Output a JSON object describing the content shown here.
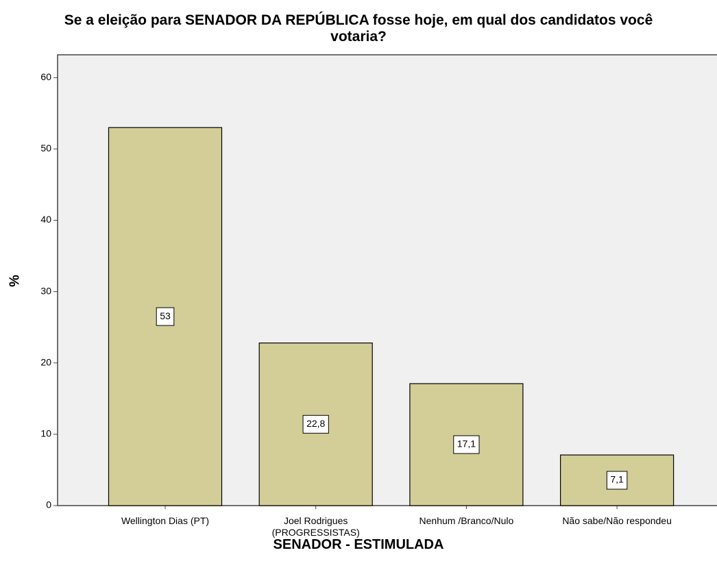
{
  "chart_data": {
    "type": "bar",
    "title": "Se a eleição para SENADOR  DA REPÚBLICA  fosse hoje, em qual dos candidatos você votaria?",
    "x_label": "SENADOR - ESTIMULADA",
    "y_label": "%",
    "categories": [
      "Wellington Dias (PT)",
      "Joel Rodrigues (PROGRESSISTAS)",
      "Nenhum /Branco/Nulo",
      "Não sabe/Não respondeu"
    ],
    "values": [
      53,
      22.8,
      17.1,
      7.1
    ],
    "value_labels": [
      "53",
      "22,8",
      "17,1",
      "7,1"
    ],
    "color": "#d3ce97",
    "ylim": [
      0,
      63.2
    ],
    "yticks": [
      0,
      10,
      20,
      30,
      40,
      50,
      60
    ]
  }
}
